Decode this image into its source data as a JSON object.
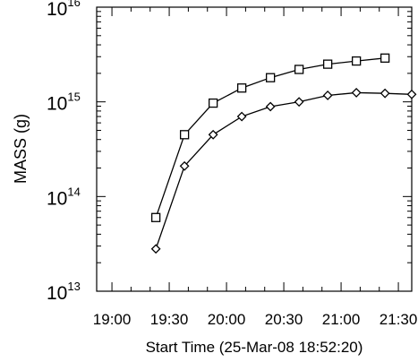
{
  "chart_data": {
    "type": "line",
    "xlabel": "Start Time (25-Mar-08 18:52:20)",
    "ylabel": "MASS (g)",
    "y_scale": "log",
    "ylim": [
      10000000000000.0,
      1e+16
    ],
    "xlim": [
      "18:52",
      "21:37"
    ],
    "grid": false,
    "x_ticks": [
      "19:00",
      "19:30",
      "20:00",
      "20:30",
      "21:00",
      "21:30"
    ],
    "y_ticks": [
      {
        "base": "10",
        "exp": "13",
        "value": 10000000000000.0
      },
      {
        "base": "10",
        "exp": "14",
        "value": 100000000000000.0
      },
      {
        "base": "10",
        "exp": "15",
        "value": 1000000000000000.0
      },
      {
        "base": "10",
        "exp": "16",
        "value": 1e+16
      }
    ],
    "series": [
      {
        "marker": "square",
        "points": [
          {
            "x": "19:23",
            "y": 60000000000000.0
          },
          {
            "x": "19:38",
            "y": 450000000000000.0
          },
          {
            "x": "19:53",
            "y": 970000000000000.0
          },
          {
            "x": "20:08",
            "y": 1400000000000000.0
          },
          {
            "x": "20:23",
            "y": 1800000000000000.0
          },
          {
            "x": "20:38",
            "y": 2200000000000000.0
          },
          {
            "x": "20:53",
            "y": 2500000000000000.0
          },
          {
            "x": "21:08",
            "y": 2700000000000000.0
          },
          {
            "x": "21:23",
            "y": 2900000000000000.0
          }
        ]
      },
      {
        "marker": "diamond",
        "points": [
          {
            "x": "19:23",
            "y": 28000000000000.0
          },
          {
            "x": "19:38",
            "y": 210000000000000.0
          },
          {
            "x": "19:53",
            "y": 450000000000000.0
          },
          {
            "x": "20:08",
            "y": 700000000000000.0
          },
          {
            "x": "20:23",
            "y": 890000000000000.0
          },
          {
            "x": "20:38",
            "y": 1000000000000000.0
          },
          {
            "x": "20:53",
            "y": 1170000000000000.0
          },
          {
            "x": "21:08",
            "y": 1250000000000000.0
          },
          {
            "x": "21:23",
            "y": 1230000000000000.0
          },
          {
            "x": "21:37",
            "y": 1200000000000000.0
          }
        ]
      }
    ]
  }
}
